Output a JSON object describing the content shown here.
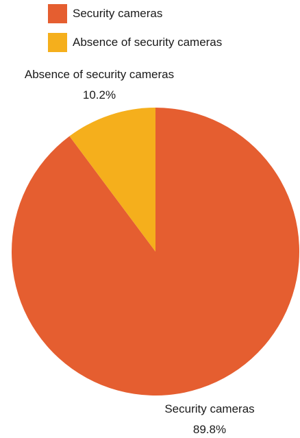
{
  "chart_data": {
    "type": "pie",
    "title": "",
    "slices": [
      {
        "label": "Security cameras",
        "value": 89.8,
        "display": "89.8%",
        "color": "#E55E30"
      },
      {
        "label": "Absence of security cameras",
        "value": 10.2,
        "display": "10.2%",
        "color": "#F5AF1C"
      }
    ],
    "legend": {
      "placement": "top"
    }
  }
}
